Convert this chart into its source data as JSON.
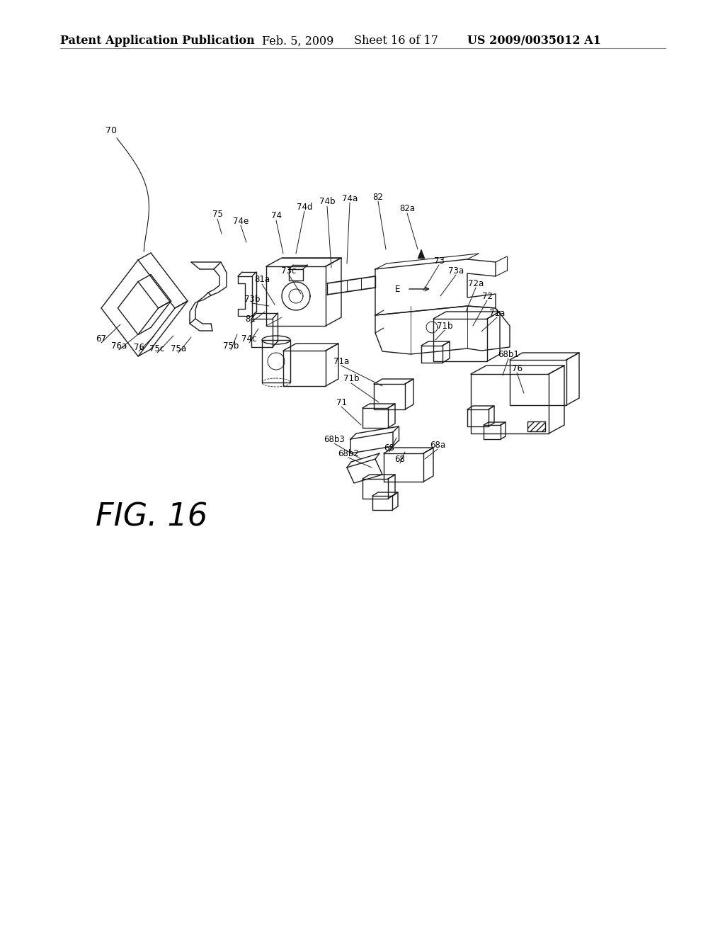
{
  "background_color": "#ffffff",
  "header_text": "Patent Application Publication",
  "header_date": "Feb. 5, 2009",
  "header_sheet": "Sheet 16 of 17",
  "header_patent": "US 2009/0035012 A1",
  "line_color": "#1a1a1a",
  "text_color": "#000000",
  "fig_fontsize": 32,
  "header_fontsize": 11.5,
  "label_fontsize": 8.5
}
